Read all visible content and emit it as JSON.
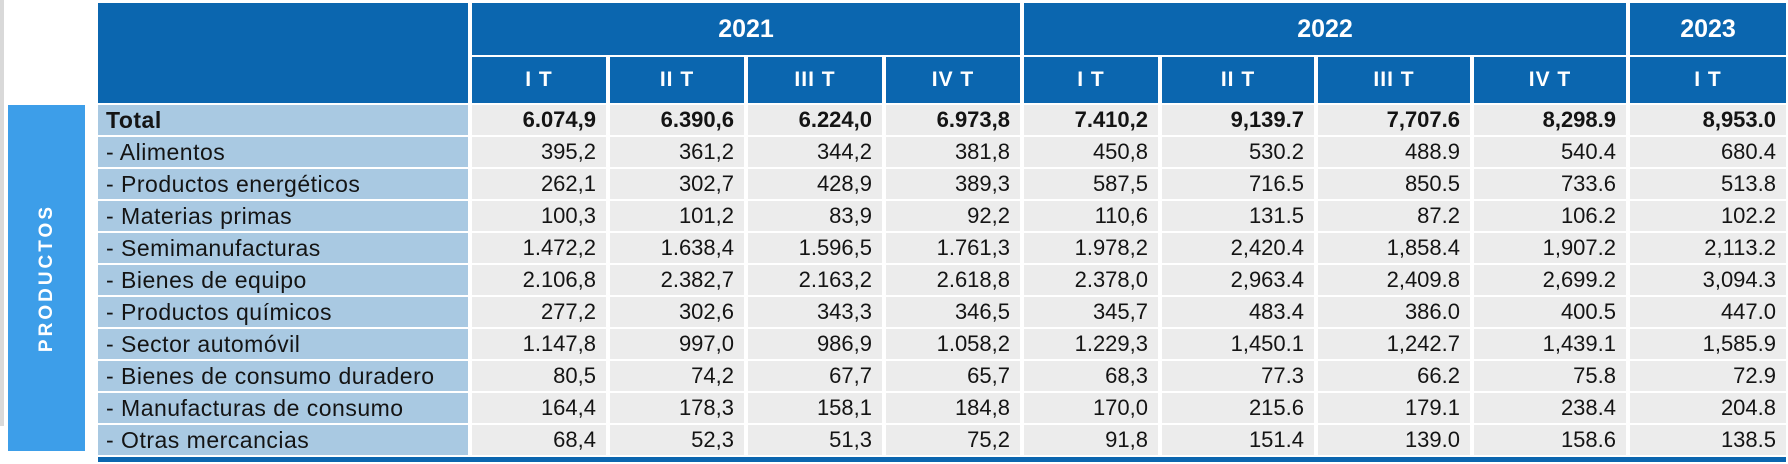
{
  "ui": {
    "region_label": "PRODUCTOS"
  },
  "colors": {
    "header_blue": "#0B66AF",
    "sidebar_blue": "#3D9EE9",
    "row_label_bg": "#A9C9E2",
    "cell_bg": "#ECECEC",
    "page_bg": "#FFFFFF",
    "text_dark": "#141414",
    "left_rule_gray": "#D9D9D9"
  },
  "chart_data": {
    "type": "table",
    "row_group_label": "PRODUCTOS",
    "year_groups": [
      {
        "label": "2021",
        "quarters": [
          "I T",
          "II T",
          "III T",
          "IV T"
        ]
      },
      {
        "label": "2022",
        "quarters": [
          "I T",
          "II T",
          "III T",
          "IV T"
        ]
      },
      {
        "label": "2023",
        "quarters": [
          "I T"
        ]
      }
    ],
    "column_headers": [
      "I T",
      "II T",
      "III T",
      "IV T",
      "I T",
      "II T",
      "III T",
      "IV T",
      "I T"
    ],
    "rows": [
      {
        "label": "Total",
        "bold": true,
        "values": [
          "6.074,9",
          "6.390,6",
          "6.224,0",
          "6.973,8",
          "7.410,2",
          "9,139.7",
          "7,707.6",
          "8,298.9",
          "8,953.0"
        ]
      },
      {
        "label": "- Alimentos",
        "bold": false,
        "values": [
          "395,2",
          "361,2",
          "344,2",
          "381,8",
          "450,8",
          "530.2",
          "488.9",
          "540.4",
          "680.4"
        ]
      },
      {
        "label": "- Productos energéticos",
        "bold": false,
        "values": [
          "262,1",
          "302,7",
          "428,9",
          "389,3",
          "587,5",
          "716.5",
          "850.5",
          "733.6",
          "513.8"
        ]
      },
      {
        "label": "- Materias primas",
        "bold": false,
        "values": [
          "100,3",
          "101,2",
          "83,9",
          "92,2",
          "110,6",
          "131.5",
          "87.2",
          "106.2",
          "102.2"
        ]
      },
      {
        "label": "- Semimanufacturas",
        "bold": false,
        "values": [
          "1.472,2",
          "1.638,4",
          "1.596,5",
          "1.761,3",
          "1.978,2",
          "2,420.4",
          "1,858.4",
          "1,907.2",
          "2,113.2"
        ]
      },
      {
        "label": "- Bienes de equipo",
        "bold": false,
        "values": [
          "2.106,8",
          "2.382,7",
          "2.163,2",
          "2.618,8",
          "2.378,0",
          "2,963.4",
          "2,409.8",
          "2,699.2",
          "3,094.3"
        ]
      },
      {
        "label": "- Productos químicos",
        "bold": false,
        "values": [
          "277,2",
          "302,6",
          "343,3",
          "346,5",
          "345,7",
          "483.4",
          "386.0",
          "400.5",
          "447.0"
        ]
      },
      {
        "label": "- Sector automóvil",
        "bold": false,
        "values": [
          "1.147,8",
          "997,0",
          "986,9",
          "1.058,2",
          "1.229,3",
          "1,450.1",
          "1,242.7",
          "1,439.1",
          "1,585.9"
        ]
      },
      {
        "label": "- Bienes de consumo duradero",
        "bold": false,
        "values": [
          "80,5",
          "74,2",
          "67,7",
          "65,7",
          "68,3",
          "77.3",
          "66.2",
          "75.8",
          "72.9"
        ]
      },
      {
        "label": "- Manufacturas de consumo",
        "bold": false,
        "values": [
          "164,4",
          "178,3",
          "158,1",
          "184,8",
          "170,0",
          "215.6",
          "179.1",
          "238.4",
          "204.8"
        ]
      },
      {
        "label": "- Otras mercancias",
        "bold": false,
        "values": [
          "68,4",
          "52,3",
          "51,3",
          "75,2",
          "91,8",
          "151.4",
          "139.0",
          "158.6",
          "138.5"
        ]
      }
    ]
  }
}
